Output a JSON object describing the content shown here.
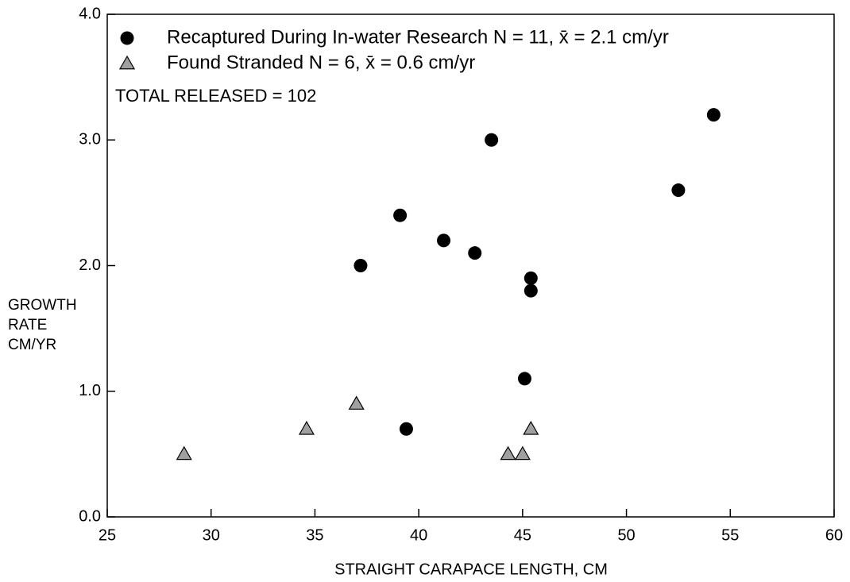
{
  "chart_data": {
    "type": "scatter",
    "xlabel": "STRAIGHT CARAPACE LENGTH, CM",
    "ylabel_lines": [
      "GROWTH",
      "RATE",
      "CM/YR"
    ],
    "annotation": "TOTAL RELEASED = 102",
    "legend": "upper left",
    "xlim": [
      25,
      60
    ],
    "xticks": [
      25,
      30,
      35,
      40,
      45,
      50,
      55,
      60
    ],
    "ylim": [
      0,
      4
    ],
    "yticks": [
      {
        "value": 0,
        "label": "0.0"
      },
      {
        "value": 1,
        "label": "1.0"
      },
      {
        "value": 2,
        "label": "2.0"
      },
      {
        "value": 3,
        "label": "3.0"
      },
      {
        "value": 4,
        "label": "4.0"
      }
    ],
    "series": [
      {
        "name": "Recaptured During In-water Research N = 11, x̄ = 2.1 cm/yr",
        "marker": "circle",
        "color": "#000000",
        "x": [
          37.2,
          39.1,
          41.2,
          42.7,
          43.5,
          45.4,
          45.4,
          45.1,
          39.4,
          52.5,
          54.2
        ],
        "values": [
          2.0,
          2.4,
          2.2,
          2.1,
          3.0,
          1.9,
          1.8,
          1.1,
          0.7,
          2.6,
          3.2
        ]
      },
      {
        "name": "Found Stranded N = 6, x̄ = 0.6 cm/yr",
        "marker": "triangle",
        "color": "#a0a0a0",
        "x": [
          28.7,
          34.6,
          37.0,
          44.3,
          45.0,
          45.4
        ],
        "values": [
          0.5,
          0.7,
          0.9,
          0.5,
          0.5,
          0.7
        ]
      }
    ]
  }
}
